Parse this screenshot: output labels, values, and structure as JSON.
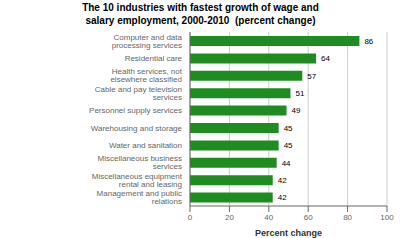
{
  "chart_data": {
    "type": "bar",
    "orientation": "horizontal",
    "title": "The 10 industries with fastest growth of wage and\nsalary employment, 2000-2010  (percent change)",
    "categories": [
      "Management and public relations",
      "Miscellaneous equipment rental and leasing",
      "Miscellaneous business services",
      "Water and sanitation",
      "Warehousing and storage",
      "Personnel supply services",
      "Cable and pay television services",
      "Health services, not elsewhere classified",
      "Residential care",
      "Computer and data processing services"
    ],
    "values": [
      42,
      42,
      44,
      45,
      45,
      49,
      51,
      57,
      64,
      86
    ],
    "color": "#1f8c1f",
    "xlabel": "Percent change",
    "xlim": [
      0,
      100
    ],
    "xticks": [
      0,
      20,
      40,
      60,
      80,
      100
    ],
    "data_labels": true,
    "grid": true
  }
}
